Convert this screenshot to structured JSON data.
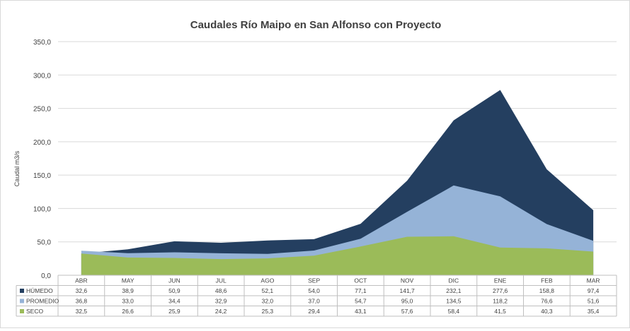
{
  "chart_data": {
    "type": "area",
    "title": "Caudales Río Maipo en San Alfonso con Proyecto",
    "ylabel": "Caudal m3/s",
    "xlabel": "",
    "ylim": [
      0,
      350
    ],
    "yticks": [
      "0,0",
      "50,0",
      "100,0",
      "150,0",
      "200,0",
      "250,0",
      "300,0",
      "350,0"
    ],
    "grid": true,
    "legend": "table-below",
    "categories": [
      "ABR",
      "MAY",
      "JUN",
      "JUL",
      "AGO",
      "SEP",
      "OCT",
      "NOV",
      "DIC",
      "ENE",
      "FEB",
      "MAR"
    ],
    "series": [
      {
        "name": "HÚMEDO",
        "color": "#243f60",
        "values": [
          32.6,
          38.9,
          50.9,
          48.6,
          52.1,
          54.0,
          77.1,
          141.7,
          232.1,
          277.6,
          158.8,
          97.4
        ],
        "labels": [
          "32,6",
          "38,9",
          "50,9",
          "48,6",
          "52,1",
          "54,0",
          "77,1",
          "141,7",
          "232,1",
          "277,6",
          "158,8",
          "97,4"
        ]
      },
      {
        "name": "PROMEDIO",
        "color": "#95b3d7",
        "values": [
          36.8,
          33.0,
          34.4,
          32.9,
          32.0,
          37.0,
          54.7,
          95.0,
          134.5,
          118.2,
          76.6,
          51.6
        ],
        "labels": [
          "36,8",
          "33,0",
          "34,4",
          "32,9",
          "32,0",
          "37,0",
          "54,7",
          "95,0",
          "134,5",
          "118,2",
          "76,6",
          "51,6"
        ]
      },
      {
        "name": "SECO",
        "color": "#9bbb59",
        "values": [
          32.5,
          26.6,
          25.9,
          24.2,
          25.3,
          29.4,
          43.1,
          57.6,
          58.4,
          41.5,
          40.3,
          35.4
        ],
        "labels": [
          "32,5",
          "26,6",
          "25,9",
          "24,2",
          "25,3",
          "29,4",
          "43,1",
          "57,6",
          "58,4",
          "41,5",
          "40,3",
          "35,4"
        ]
      }
    ]
  }
}
